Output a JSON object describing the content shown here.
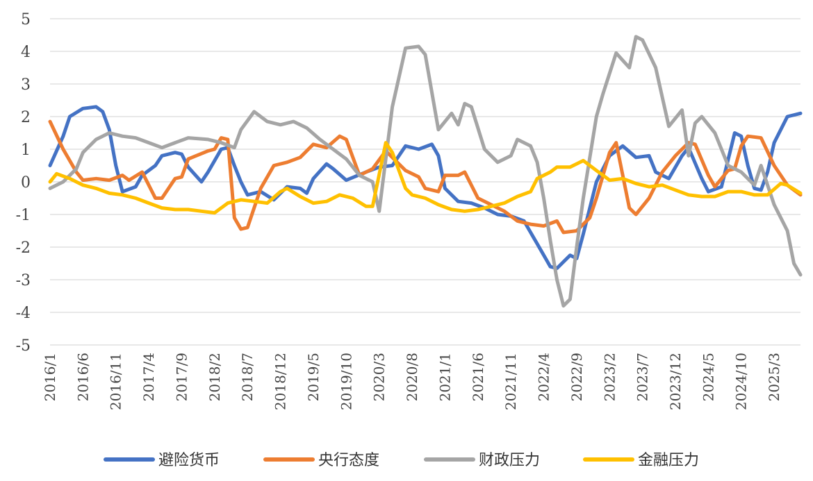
{
  "chart_data": {
    "type": "line",
    "title": "",
    "xlabel": "",
    "ylabel": "",
    "ylim": [
      -5,
      5
    ],
    "yticks": [
      -5,
      -4,
      -3,
      -2,
      -1,
      0,
      1,
      2,
      3,
      4,
      5
    ],
    "xticks": [
      "2016/1",
      "2016/6",
      "2016/11",
      "2017/4",
      "2017/9",
      "2018/2",
      "2018/7",
      "2018/12",
      "2019/5",
      "2019/10",
      "2020/3",
      "2020/8",
      "2021/1",
      "2021/6",
      "2021/11",
      "2022/4",
      "2022/9",
      "2023/2",
      "2023/7",
      "2023/12",
      "2024/5",
      "2024/10",
      "2025/3"
    ],
    "x_start": "2016/1",
    "x_end": "2025/7",
    "grid": true,
    "legend_position": "bottom",
    "series": [
      {
        "name": "避险货币",
        "color": "#4472C4",
        "points": [
          [
            "2016/1",
            0.5
          ],
          [
            "2016/3",
            1.4
          ],
          [
            "2016/4",
            2.0
          ],
          [
            "2016/6",
            2.25
          ],
          [
            "2016/8",
            2.3
          ],
          [
            "2016/9",
            2.15
          ],
          [
            "2016/10",
            1.6
          ],
          [
            "2016/11",
            0.5
          ],
          [
            "2016/12",
            -0.3
          ],
          [
            "2017/2",
            -0.15
          ],
          [
            "2017/3",
            0.2
          ],
          [
            "2017/5",
            0.5
          ],
          [
            "2017/6",
            0.8
          ],
          [
            "2017/8",
            0.9
          ],
          [
            "2017/9",
            0.85
          ],
          [
            "2017/10",
            0.45
          ],
          [
            "2017/12",
            0.0
          ],
          [
            "2018/1",
            0.3
          ],
          [
            "2018/3",
            1.0
          ],
          [
            "2018/4",
            1.05
          ],
          [
            "2018/5",
            0.5
          ],
          [
            "2018/6",
            0.0
          ],
          [
            "2018/7",
            -0.4
          ],
          [
            "2018/9",
            -0.3
          ],
          [
            "2018/11",
            -0.55
          ],
          [
            "2019/1",
            -0.15
          ],
          [
            "2019/3",
            -0.2
          ],
          [
            "2019/4",
            -0.35
          ],
          [
            "2019/5",
            0.1
          ],
          [
            "2019/7",
            0.55
          ],
          [
            "2019/8",
            0.4
          ],
          [
            "2019/10",
            0.05
          ],
          [
            "2020/1",
            0.3
          ],
          [
            "2020/3",
            0.45
          ],
          [
            "2020/5",
            0.5
          ],
          [
            "2020/7",
            1.1
          ],
          [
            "2020/9",
            1.0
          ],
          [
            "2020/11",
            1.15
          ],
          [
            "2020/12",
            0.8
          ],
          [
            "2021/1",
            -0.2
          ],
          [
            "2021/3",
            -0.6
          ],
          [
            "2021/5",
            -0.65
          ],
          [
            "2021/7",
            -0.8
          ],
          [
            "2021/9",
            -1.0
          ],
          [
            "2021/11",
            -1.05
          ],
          [
            "2022/1",
            -1.2
          ],
          [
            "2022/3",
            -1.9
          ],
          [
            "2022/5",
            -2.6
          ],
          [
            "2022/6",
            -2.65
          ],
          [
            "2022/8",
            -2.25
          ],
          [
            "2022/9",
            -2.35
          ],
          [
            "2022/10",
            -1.6
          ],
          [
            "2022/12",
            0.0
          ],
          [
            "2023/2",
            0.8
          ],
          [
            "2023/4",
            1.1
          ],
          [
            "2023/6",
            0.75
          ],
          [
            "2023/8",
            0.8
          ],
          [
            "2023/9",
            0.3
          ],
          [
            "2023/11",
            0.1
          ],
          [
            "2024/1",
            0.8
          ],
          [
            "2024/2",
            1.05
          ],
          [
            "2024/4",
            0.1
          ],
          [
            "2024/5",
            -0.3
          ],
          [
            "2024/7",
            -0.15
          ],
          [
            "2024/9",
            1.5
          ],
          [
            "2024/10",
            1.4
          ],
          [
            "2024/11",
            0.5
          ],
          [
            "2024/12",
            -0.2
          ],
          [
            "2025/1",
            -0.25
          ],
          [
            "2025/2",
            0.3
          ],
          [
            "2025/3",
            1.2
          ],
          [
            "2025/5",
            2.0
          ],
          [
            "2025/7",
            2.1
          ]
        ]
      },
      {
        "name": "央行态度",
        "color": "#ED7D31",
        "points": [
          [
            "2016/1",
            1.85
          ],
          [
            "2016/3",
            1.0
          ],
          [
            "2016/5",
            0.3
          ],
          [
            "2016/6",
            0.05
          ],
          [
            "2016/8",
            0.1
          ],
          [
            "2016/10",
            0.05
          ],
          [
            "2016/12",
            0.2
          ],
          [
            "2017/1",
            0.05
          ],
          [
            "2017/3",
            0.3
          ],
          [
            "2017/5",
            -0.5
          ],
          [
            "2017/6",
            -0.5
          ],
          [
            "2017/8",
            0.1
          ],
          [
            "2017/9",
            0.15
          ],
          [
            "2017/10",
            0.7
          ],
          [
            "2018/1",
            0.95
          ],
          [
            "2018/2",
            1.0
          ],
          [
            "2018/3",
            1.35
          ],
          [
            "2018/4",
            1.3
          ],
          [
            "2018/5",
            -1.1
          ],
          [
            "2018/6",
            -1.45
          ],
          [
            "2018/7",
            -1.4
          ],
          [
            "2018/9",
            -0.2
          ],
          [
            "2018/11",
            0.5
          ],
          [
            "2019/1",
            0.6
          ],
          [
            "2019/3",
            0.75
          ],
          [
            "2019/5",
            1.15
          ],
          [
            "2019/7",
            1.05
          ],
          [
            "2019/9",
            1.4
          ],
          [
            "2019/10",
            1.3
          ],
          [
            "2019/12",
            0.2
          ],
          [
            "2020/2",
            0.4
          ],
          [
            "2020/4",
            0.95
          ],
          [
            "2020/5",
            0.75
          ],
          [
            "2020/7",
            0.35
          ],
          [
            "2020/9",
            0.15
          ],
          [
            "2020/10",
            -0.2
          ],
          [
            "2020/12",
            -0.3
          ],
          [
            "2021/1",
            0.2
          ],
          [
            "2021/3",
            0.2
          ],
          [
            "2021/4",
            0.3
          ],
          [
            "2021/6",
            -0.5
          ],
          [
            "2021/8",
            -0.7
          ],
          [
            "2021/10",
            -0.9
          ],
          [
            "2021/12",
            -1.2
          ],
          [
            "2022/2",
            -1.3
          ],
          [
            "2022/4",
            -1.35
          ],
          [
            "2022/6",
            -1.2
          ],
          [
            "2022/7",
            -1.55
          ],
          [
            "2022/9",
            -1.5
          ],
          [
            "2022/11",
            -1.1
          ],
          [
            "2022/12",
            -0.5
          ],
          [
            "2023/2",
            0.9
          ],
          [
            "2023/3",
            1.2
          ],
          [
            "2023/5",
            -0.8
          ],
          [
            "2023/6",
            -1.0
          ],
          [
            "2023/8",
            -0.5
          ],
          [
            "2023/10",
            0.3
          ],
          [
            "2023/12",
            0.8
          ],
          [
            "2024/2",
            1.2
          ],
          [
            "2024/3",
            1.15
          ],
          [
            "2024/5",
            0.2
          ],
          [
            "2024/6",
            -0.15
          ],
          [
            "2024/8",
            0.35
          ],
          [
            "2024/9",
            0.4
          ],
          [
            "2024/10",
            1.1
          ],
          [
            "2024/11",
            1.4
          ],
          [
            "2025/1",
            1.35
          ],
          [
            "2025/3",
            0.5
          ],
          [
            "2025/5",
            -0.1
          ],
          [
            "2025/7",
            -0.4
          ]
        ]
      },
      {
        "name": "财政压力",
        "color": "#A5A5A5",
        "points": [
          [
            "2016/1",
            -0.2
          ],
          [
            "2016/3",
            0.0
          ],
          [
            "2016/5",
            0.4
          ],
          [
            "2016/6",
            0.9
          ],
          [
            "2016/8",
            1.3
          ],
          [
            "2016/10",
            1.5
          ],
          [
            "2016/12",
            1.4
          ],
          [
            "2017/2",
            1.35
          ],
          [
            "2017/4",
            1.2
          ],
          [
            "2017/6",
            1.05
          ],
          [
            "2017/8",
            1.2
          ],
          [
            "2017/10",
            1.35
          ],
          [
            "2018/1",
            1.3
          ],
          [
            "2018/3",
            1.2
          ],
          [
            "2018/5",
            1.05
          ],
          [
            "2018/6",
            1.6
          ],
          [
            "2018/8",
            2.15
          ],
          [
            "2018/10",
            1.85
          ],
          [
            "2018/12",
            1.75
          ],
          [
            "2019/2",
            1.85
          ],
          [
            "2019/4",
            1.65
          ],
          [
            "2019/6",
            1.3
          ],
          [
            "2019/8",
            1.0
          ],
          [
            "2019/10",
            0.7
          ],
          [
            "2019/12",
            0.2
          ],
          [
            "2020/2",
            0.0
          ],
          [
            "2020/3",
            -0.9
          ],
          [
            "2020/5",
            2.3
          ],
          [
            "2020/7",
            4.1
          ],
          [
            "2020/9",
            4.15
          ],
          [
            "2020/10",
            3.9
          ],
          [
            "2020/12",
            1.6
          ],
          [
            "2021/2",
            2.1
          ],
          [
            "2021/3",
            1.75
          ],
          [
            "2021/4",
            2.4
          ],
          [
            "2021/5",
            2.3
          ],
          [
            "2021/7",
            1.0
          ],
          [
            "2021/9",
            0.6
          ],
          [
            "2021/11",
            0.8
          ],
          [
            "2021/12",
            1.3
          ],
          [
            "2022/2",
            1.1
          ],
          [
            "2022/3",
            0.6
          ],
          [
            "2022/4",
            -0.5
          ],
          [
            "2022/5",
            -1.8
          ],
          [
            "2022/6",
            -3.0
          ],
          [
            "2022/7",
            -3.8
          ],
          [
            "2022/8",
            -3.6
          ],
          [
            "2022/9",
            -2.0
          ],
          [
            "2022/10",
            -0.5
          ],
          [
            "2022/12",
            2.0
          ],
          [
            "2023/1",
            2.7
          ],
          [
            "2023/3",
            3.95
          ],
          [
            "2023/5",
            3.5
          ],
          [
            "2023/6",
            4.45
          ],
          [
            "2023/7",
            4.35
          ],
          [
            "2023/9",
            3.5
          ],
          [
            "2023/11",
            1.7
          ],
          [
            "2024/1",
            2.2
          ],
          [
            "2024/2",
            0.8
          ],
          [
            "2024/3",
            1.8
          ],
          [
            "2024/4",
            2.0
          ],
          [
            "2024/6",
            1.5
          ],
          [
            "2024/8",
            0.5
          ],
          [
            "2024/10",
            0.3
          ],
          [
            "2024/12",
            -0.1
          ],
          [
            "2025/1",
            0.5
          ],
          [
            "2025/3",
            -0.7
          ],
          [
            "2025/5",
            -1.5
          ],
          [
            "2025/6",
            -2.5
          ],
          [
            "2025/7",
            -2.85
          ]
        ]
      },
      {
        "name": "金融压力",
        "color": "#FFC000",
        "points": [
          [
            "2016/1",
            0.0
          ],
          [
            "2016/2",
            0.25
          ],
          [
            "2016/4",
            0.1
          ],
          [
            "2016/6",
            -0.1
          ],
          [
            "2016/8",
            -0.2
          ],
          [
            "2016/10",
            -0.35
          ],
          [
            "2016/12",
            -0.4
          ],
          [
            "2017/2",
            -0.5
          ],
          [
            "2017/4",
            -0.65
          ],
          [
            "2017/6",
            -0.8
          ],
          [
            "2017/8",
            -0.85
          ],
          [
            "2017/10",
            -0.85
          ],
          [
            "2017/12",
            -0.9
          ],
          [
            "2018/2",
            -0.95
          ],
          [
            "2018/4",
            -0.65
          ],
          [
            "2018/6",
            -0.55
          ],
          [
            "2018/8",
            -0.6
          ],
          [
            "2018/10",
            -0.65
          ],
          [
            "2018/12",
            -0.3
          ],
          [
            "2019/1",
            -0.2
          ],
          [
            "2019/3",
            -0.45
          ],
          [
            "2019/5",
            -0.65
          ],
          [
            "2019/7",
            -0.6
          ],
          [
            "2019/9",
            -0.4
          ],
          [
            "2019/11",
            -0.5
          ],
          [
            "2020/1",
            -0.75
          ],
          [
            "2020/2",
            -0.75
          ],
          [
            "2020/4",
            1.2
          ],
          [
            "2020/5",
            0.9
          ],
          [
            "2020/7",
            -0.2
          ],
          [
            "2020/8",
            -0.4
          ],
          [
            "2020/10",
            -0.5
          ],
          [
            "2020/12",
            -0.7
          ],
          [
            "2021/2",
            -0.85
          ],
          [
            "2021/4",
            -0.9
          ],
          [
            "2021/6",
            -0.85
          ],
          [
            "2021/8",
            -0.75
          ],
          [
            "2021/10",
            -0.65
          ],
          [
            "2021/12",
            -0.45
          ],
          [
            "2022/2",
            -0.3
          ],
          [
            "2022/3",
            0.1
          ],
          [
            "2022/5",
            0.3
          ],
          [
            "2022/6",
            0.45
          ],
          [
            "2022/8",
            0.45
          ],
          [
            "2022/10",
            0.65
          ],
          [
            "2022/12",
            0.35
          ],
          [
            "2023/2",
            0.05
          ],
          [
            "2023/4",
            0.1
          ],
          [
            "2023/6",
            -0.05
          ],
          [
            "2023/8",
            -0.15
          ],
          [
            "2023/10",
            -0.1
          ],
          [
            "2023/12",
            -0.25
          ],
          [
            "2024/2",
            -0.4
          ],
          [
            "2024/4",
            -0.45
          ],
          [
            "2024/6",
            -0.45
          ],
          [
            "2024/8",
            -0.3
          ],
          [
            "2024/10",
            -0.3
          ],
          [
            "2024/12",
            -0.4
          ],
          [
            "2025/2",
            -0.4
          ],
          [
            "2025/4",
            -0.05
          ],
          [
            "2025/5",
            -0.1
          ],
          [
            "2025/7",
            -0.35
          ]
        ]
      }
    ]
  }
}
